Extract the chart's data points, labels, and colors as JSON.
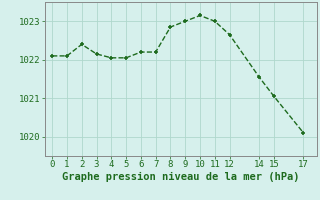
{
  "x": [
    0,
    1,
    2,
    3,
    4,
    5,
    6,
    7,
    8,
    9,
    10,
    11,
    12,
    14,
    15,
    17
  ],
  "y": [
    1022.1,
    1022.1,
    1022.4,
    1022.15,
    1022.05,
    1022.05,
    1022.2,
    1022.2,
    1022.85,
    1023.0,
    1023.15,
    1023.0,
    1022.65,
    1021.55,
    1021.05,
    1020.1
  ],
  "line_color": "#1e6b1e",
  "marker_color": "#1e6b1e",
  "bg_color": "#d6f0ec",
  "grid_color": "#afd8cc",
  "label_color": "#1e6b1e",
  "border_color": "#888888",
  "xlabel": "Graphe pression niveau de la mer (hPa)",
  "xlim": [
    -0.5,
    17.9
  ],
  "ylim": [
    1019.5,
    1023.5
  ],
  "yticks": [
    1020,
    1021,
    1022,
    1023
  ],
  "xticks": [
    0,
    1,
    2,
    3,
    4,
    5,
    6,
    7,
    8,
    9,
    10,
    11,
    12,
    14,
    15,
    17
  ],
  "tick_fontsize": 6.5,
  "xlabel_fontsize": 7.5,
  "linewidth": 1.0,
  "markersize": 3.5
}
